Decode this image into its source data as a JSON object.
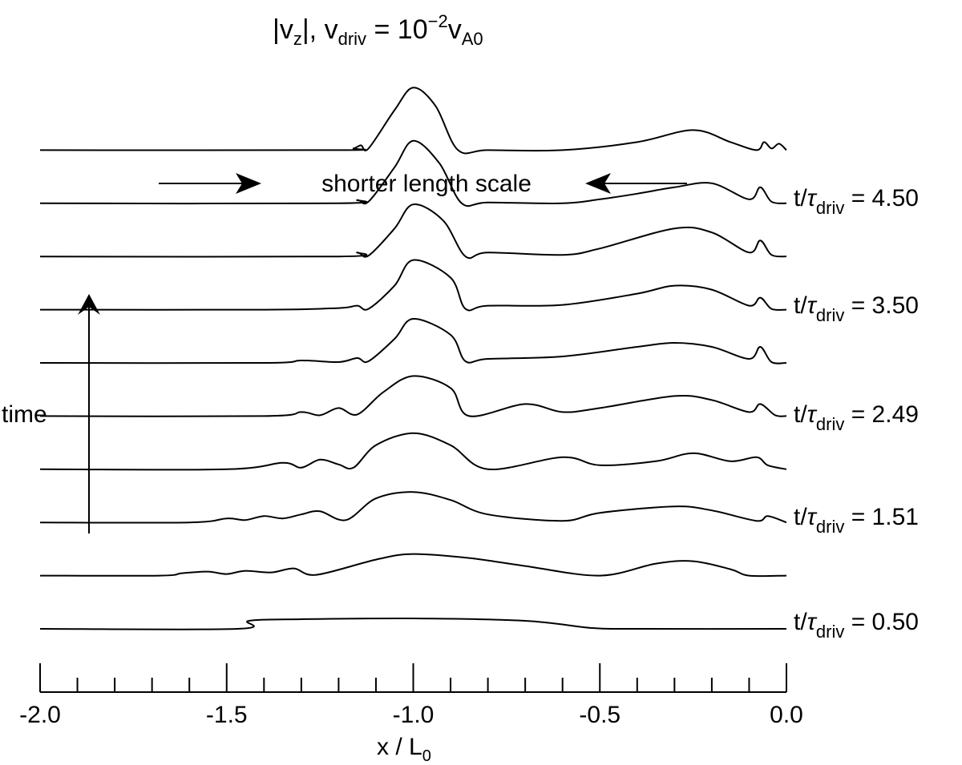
{
  "chart_data": {
    "type": "line",
    "title": {
      "abs_open": "|v",
      "v_sub": "z",
      "abs_close": "|, v",
      "driv_sub": "driv",
      "eq": " = 10",
      "exp": "−2",
      "v2": "v",
      "a0_sub": "A0"
    },
    "xlabel": {
      "main": "x / L",
      "sub": "0"
    },
    "xlim": [
      -2.0,
      0.0
    ],
    "x_major_ticks": [
      -2.0,
      -1.5,
      -1.0,
      -0.5,
      0.0
    ],
    "x_tick_labels": [
      "-2.0",
      "-1.5",
      "-1.0",
      "-0.5",
      "0.0"
    ],
    "x_minor_step": 0.1,
    "grid": false,
    "time_axis_label": "time",
    "annotation": "shorter length scale",
    "time_labels": [
      {
        "prefix": "t/",
        "tau": "τ",
        "sub": "driv",
        "value": "= 4.50"
      },
      {
        "prefix": "t/",
        "tau": "τ",
        "sub": "driv",
        "value": "= 3.50"
      },
      {
        "prefix": "t/",
        "tau": "τ",
        "sub": "driv",
        "value": "= 2.49"
      },
      {
        "prefix": "t/",
        "tau": "τ",
        "sub": "driv",
        "value": "= 1.51"
      },
      {
        "prefix": "t/",
        "tau": "τ",
        "sub": "driv",
        "value": "= 0.50"
      }
    ],
    "series": [
      {
        "values": [
          [
            -2.0,
            0
          ],
          [
            -1.47,
            0
          ],
          [
            -1.44,
            0.1
          ],
          [
            -1.3,
            0.12
          ],
          [
            -1.0,
            0.13
          ],
          [
            -0.7,
            0.1
          ],
          [
            -0.52,
            0.01
          ],
          [
            -0.4,
            0
          ],
          [
            0.0,
            0
          ]
        ]
      },
      {
        "values": [
          [
            -2.0,
            0
          ],
          [
            -1.68,
            0
          ],
          [
            -1.62,
            0.03
          ],
          [
            -1.55,
            0.05
          ],
          [
            -1.5,
            0.02
          ],
          [
            -1.45,
            0.06
          ],
          [
            -1.38,
            0.04
          ],
          [
            -1.32,
            0.09
          ],
          [
            -1.26,
            0.01
          ],
          [
            -1.1,
            0.2
          ],
          [
            -1.0,
            0.27
          ],
          [
            -0.85,
            0.22
          ],
          [
            -0.7,
            0.12
          ],
          [
            -0.5,
            0.0
          ],
          [
            -0.35,
            0.15
          ],
          [
            -0.25,
            0.18
          ],
          [
            -0.15,
            0.08
          ],
          [
            -0.1,
            0.0
          ],
          [
            0.0,
            0
          ]
        ]
      },
      {
        "values": [
          [
            -2.0,
            0
          ],
          [
            -1.6,
            0
          ],
          [
            -1.5,
            0.05
          ],
          [
            -1.45,
            0.03
          ],
          [
            -1.4,
            0.08
          ],
          [
            -1.35,
            0.05
          ],
          [
            -1.3,
            0.1
          ],
          [
            -1.25,
            0.14
          ],
          [
            -1.18,
            0.03
          ],
          [
            -1.1,
            0.3
          ],
          [
            -1.0,
            0.38
          ],
          [
            -0.9,
            0.28
          ],
          [
            -0.8,
            0.1
          ],
          [
            -0.6,
            0.02
          ],
          [
            -0.5,
            0.12
          ],
          [
            -0.3,
            0.2
          ],
          [
            -0.2,
            0.15
          ],
          [
            -0.08,
            0.02
          ],
          [
            -0.05,
            0.08
          ],
          [
            0.0,
            0
          ]
        ]
      },
      {
        "values": [
          [
            -2.0,
            0
          ],
          [
            -1.5,
            0
          ],
          [
            -1.35,
            0.08
          ],
          [
            -1.3,
            0.02
          ],
          [
            -1.25,
            0.12
          ],
          [
            -1.2,
            0.06
          ],
          [
            -1.16,
            0.02
          ],
          [
            -1.1,
            0.3
          ],
          [
            -1.0,
            0.45
          ],
          [
            -0.9,
            0.3
          ],
          [
            -0.8,
            0.0
          ],
          [
            -0.6,
            0.15
          ],
          [
            -0.5,
            0.05
          ],
          [
            -0.35,
            0.1
          ],
          [
            -0.25,
            0.2
          ],
          [
            -0.15,
            0.1
          ],
          [
            -0.08,
            0.15
          ],
          [
            -0.05,
            0.05
          ],
          [
            0.0,
            0
          ]
        ]
      },
      {
        "values": [
          [
            -2.0,
            0
          ],
          [
            -1.4,
            0
          ],
          [
            -1.3,
            0.05
          ],
          [
            -1.25,
            0.01
          ],
          [
            -1.2,
            0.1
          ],
          [
            -1.15,
            0.02
          ],
          [
            -1.08,
            0.3
          ],
          [
            -1.0,
            0.5
          ],
          [
            -0.9,
            0.35
          ],
          [
            -0.85,
            0.0
          ],
          [
            -0.7,
            0.15
          ],
          [
            -0.6,
            0.05
          ],
          [
            -0.5,
            0.1
          ],
          [
            -0.3,
            0.25
          ],
          [
            -0.2,
            0.2
          ],
          [
            -0.1,
            0.05
          ],
          [
            -0.07,
            0.15
          ],
          [
            -0.03,
            0.01
          ],
          [
            0.0,
            0
          ]
        ]
      },
      {
        "values": [
          [
            -2.0,
            0
          ],
          [
            -1.4,
            0
          ],
          [
            -1.3,
            0.03
          ],
          [
            -1.2,
            0.01
          ],
          [
            -1.15,
            0.06
          ],
          [
            -1.12,
            0.02
          ],
          [
            -1.05,
            0.3
          ],
          [
            -1.0,
            0.55
          ],
          [
            -0.9,
            0.35
          ],
          [
            -0.86,
            0.02
          ],
          [
            -0.8,
            0.05
          ],
          [
            -0.6,
            0.08
          ],
          [
            -0.4,
            0.2
          ],
          [
            -0.3,
            0.25
          ],
          [
            -0.2,
            0.2
          ],
          [
            -0.1,
            0.05
          ],
          [
            -0.07,
            0.2
          ],
          [
            -0.04,
            0.01
          ],
          [
            0.0,
            0
          ]
        ]
      },
      {
        "values": [
          [
            -2.0,
            0
          ],
          [
            -1.4,
            0
          ],
          [
            -1.2,
            0.02
          ],
          [
            -1.15,
            0.05
          ],
          [
            -1.12,
            0.01
          ],
          [
            -1.05,
            0.3
          ],
          [
            -1.0,
            0.62
          ],
          [
            -0.9,
            0.4
          ],
          [
            -0.86,
            0.01
          ],
          [
            -0.8,
            0.05
          ],
          [
            -0.6,
            0.06
          ],
          [
            -0.4,
            0.2
          ],
          [
            -0.3,
            0.3
          ],
          [
            -0.2,
            0.25
          ],
          [
            -0.1,
            0.05
          ],
          [
            -0.07,
            0.15
          ],
          [
            -0.04,
            0.01
          ],
          [
            0.0,
            0
          ]
        ]
      },
      {
        "values": [
          [
            -2.0,
            0
          ],
          [
            -1.2,
            0
          ],
          [
            -1.15,
            0.05
          ],
          [
            -1.12,
            0.01
          ],
          [
            -1.05,
            0.35
          ],
          [
            -1.0,
            0.65
          ],
          [
            -0.92,
            0.45
          ],
          [
            -0.86,
            0.0
          ],
          [
            -0.8,
            0.05
          ],
          [
            -0.6,
            0.02
          ],
          [
            -0.5,
            0.1
          ],
          [
            -0.3,
            0.35
          ],
          [
            -0.2,
            0.3
          ],
          [
            -0.1,
            0.05
          ],
          [
            -0.07,
            0.2
          ],
          [
            -0.04,
            0.02
          ],
          [
            0.0,
            0
          ]
        ]
      },
      {
        "values": [
          [
            -2.0,
            0
          ],
          [
            -1.2,
            0
          ],
          [
            -1.15,
            0.04
          ],
          [
            -1.12,
            0.02
          ],
          [
            -1.05,
            0.45
          ],
          [
            -1.0,
            0.78
          ],
          [
            -0.93,
            0.5
          ],
          [
            -0.87,
            0.0
          ],
          [
            -0.8,
            0.01
          ],
          [
            -0.6,
            0.0
          ],
          [
            -0.5,
            0.05
          ],
          [
            -0.4,
            0.12
          ],
          [
            -0.3,
            0.2
          ],
          [
            -0.2,
            0.25
          ],
          [
            -0.1,
            0.05
          ],
          [
            -0.07,
            0.2
          ],
          [
            -0.04,
            0.02
          ],
          [
            0.0,
            0
          ]
        ]
      },
      {
        "values": [
          [
            -2.0,
            0
          ],
          [
            -1.2,
            0
          ],
          [
            -1.16,
            0.02
          ],
          [
            -1.14,
            0.06
          ],
          [
            -1.12,
            0.02
          ],
          [
            -1.05,
            0.5
          ],
          [
            -1.0,
            0.78
          ],
          [
            -0.94,
            0.55
          ],
          [
            -0.88,
            0.0
          ],
          [
            -0.8,
            0.0
          ],
          [
            -0.6,
            0.0
          ],
          [
            -0.4,
            0.1
          ],
          [
            -0.25,
            0.25
          ],
          [
            -0.15,
            0.1
          ],
          [
            -0.08,
            0.0
          ],
          [
            -0.06,
            0.1
          ],
          [
            -0.04,
            0.02
          ],
          [
            -0.02,
            0.08
          ],
          [
            0.0,
            0
          ]
        ]
      }
    ]
  }
}
